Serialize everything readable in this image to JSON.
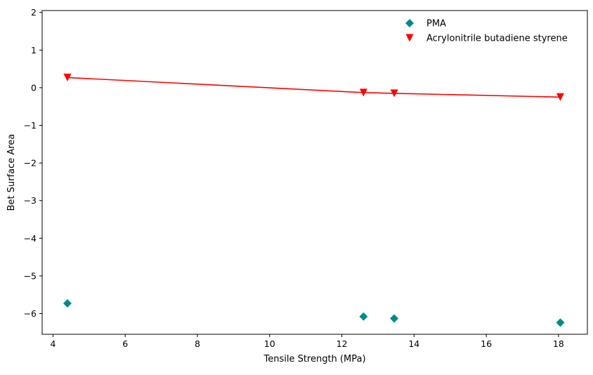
{
  "chart_data": {
    "type": "scatter",
    "xlabel": "Tensile Strength (MPa)",
    "ylabel": "Bet Surface Area",
    "xlim": [
      3.7,
      18.8
    ],
    "ylim": [
      -6.55,
      2.05
    ],
    "x_ticks": [
      4,
      6,
      8,
      10,
      12,
      14,
      16,
      18
    ],
    "y_ticks": [
      -6,
      -5,
      -4,
      -3,
      -2,
      -1,
      0,
      1,
      2
    ],
    "x_tick_labels": [
      "4",
      "6",
      "8",
      "10",
      "12",
      "14",
      "16",
      "18"
    ],
    "y_tick_labels": [
      "−6",
      "−5",
      "−4",
      "−3",
      "−2",
      "−1",
      "0",
      "1",
      "2"
    ],
    "grid": false,
    "legend_position": "upper-right",
    "series": [
      {
        "name": "PMA",
        "marker": "diamond",
        "color": "#008B8B",
        "line": false,
        "points": [
          {
            "x": 4.4,
            "y": -5.73
          },
          {
            "x": 12.6,
            "y": -6.08
          },
          {
            "x": 13.45,
            "y": -6.13
          },
          {
            "x": 18.05,
            "y": -6.24
          }
        ]
      },
      {
        "name": "Acrylonitrile butadiene styrene",
        "marker": "triangle-down",
        "color": "#FF0000",
        "line": true,
        "points": [
          {
            "x": 4.4,
            "y": 0.27
          },
          {
            "x": 12.6,
            "y": -0.13
          },
          {
            "x": 13.45,
            "y": -0.15
          },
          {
            "x": 18.05,
            "y": -0.25
          }
        ]
      }
    ]
  }
}
